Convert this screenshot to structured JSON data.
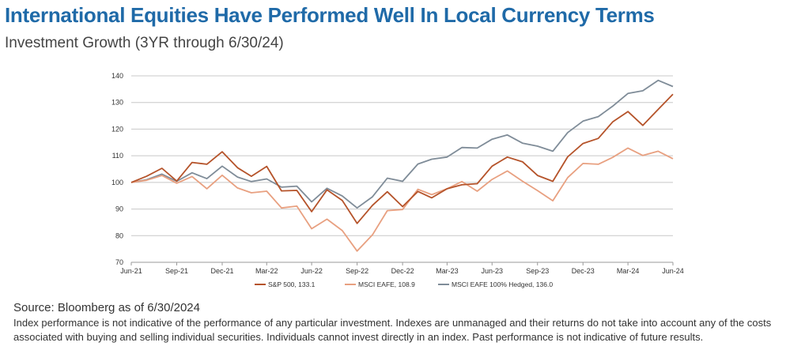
{
  "header": {
    "title": "International Equities Have Performed Well In Local Currency Terms",
    "subtitle": "Investment Growth (3YR through 6/30/24)"
  },
  "footer": {
    "source": "Source: Bloomberg as of 6/30/2024",
    "disclaimer": "Index performance is not indicative of the performance of any particular investment. Indexes are unmanaged and their returns do not take into account any of the costs associated with buying and selling individual securities. Individuals cannot invest directly in an index. Past performance is not indicative of future results."
  },
  "chart_data": {
    "type": "line",
    "title": "",
    "xlabel": "",
    "ylabel": "",
    "ylim": [
      70,
      140
    ],
    "yticks": [
      70,
      80,
      90,
      100,
      110,
      120,
      130,
      140
    ],
    "xlim": [
      "2021-06-30",
      "2024-06-30"
    ],
    "xticks": [
      {
        "date": "2021-06-30",
        "label": "Jun-21"
      },
      {
        "date": "2021-09-30",
        "label": "Sep-21"
      },
      {
        "date": "2021-12-31",
        "label": "Dec-21"
      },
      {
        "date": "2022-03-31",
        "label": "Mar-22"
      },
      {
        "date": "2022-06-30",
        "label": "Jun-22"
      },
      {
        "date": "2022-09-30",
        "label": "Sep-22"
      },
      {
        "date": "2022-12-31",
        "label": "Dec-22"
      },
      {
        "date": "2023-03-31",
        "label": "Mar-23"
      },
      {
        "date": "2023-06-30",
        "label": "Jun-23"
      },
      {
        "date": "2023-09-30",
        "label": "Sep-23"
      },
      {
        "date": "2023-12-31",
        "label": "Dec-23"
      },
      {
        "date": "2024-03-31",
        "label": "Mar-24"
      },
      {
        "date": "2024-06-30",
        "label": "Jun-24"
      }
    ],
    "grid": "horizontal",
    "legend_position": "bottom",
    "x": [
      "2021-06-30",
      "2021-07-31",
      "2021-08-31",
      "2021-09-30",
      "2021-10-31",
      "2021-11-30",
      "2021-12-31",
      "2022-01-31",
      "2022-02-28",
      "2022-03-31",
      "2022-04-30",
      "2022-05-31",
      "2022-06-30",
      "2022-07-31",
      "2022-08-31",
      "2022-09-30",
      "2022-10-31",
      "2022-11-30",
      "2022-12-31",
      "2023-01-31",
      "2023-02-28",
      "2023-03-31",
      "2023-04-30",
      "2023-05-31",
      "2023-06-30",
      "2023-07-31",
      "2023-08-31",
      "2023-09-30",
      "2023-10-31",
      "2023-11-30",
      "2023-12-31",
      "2024-01-31",
      "2024-02-29",
      "2024-03-31",
      "2024-04-30",
      "2024-05-31",
      "2024-06-30"
    ],
    "series": [
      {
        "name": "S&P 500, 133.1",
        "color": "#b5532a",
        "values": [
          100,
          102.3,
          105.3,
          100.5,
          107.5,
          106.8,
          111.5,
          105.5,
          102.3,
          106.0,
          96.8,
          97.0,
          89.0,
          97.2,
          93.2,
          84.6,
          91.4,
          96.5,
          90.9,
          96.6,
          94.2,
          97.6,
          99.1,
          99.5,
          106.1,
          109.5,
          107.7,
          102.6,
          100.4,
          109.6,
          114.6,
          116.5,
          122.7,
          126.6,
          121.4,
          127.4,
          133.1
        ]
      },
      {
        "name": "MSCI EAFE, 108.9",
        "color": "#e8a080",
        "values": [
          100,
          100.8,
          102.6,
          99.7,
          102.2,
          97.6,
          102.7,
          97.9,
          96.1,
          96.7,
          90.4,
          91.1,
          82.6,
          86.2,
          81.9,
          74.2,
          80.3,
          89.4,
          89.8,
          97.4,
          95.4,
          97.6,
          100.3,
          96.7,
          101.1,
          104.3,
          100.4,
          96.9,
          93.1,
          101.8,
          107.1,
          106.8,
          109.4,
          112.9,
          110.1,
          111.7,
          108.9
        ]
      },
      {
        "name": "MSCI EAFE 100% Hedged, 136.0",
        "color": "#7f8c98",
        "values": [
          100,
          101.0,
          103.1,
          100.4,
          103.6,
          101.4,
          106.1,
          102.0,
          100.3,
          101.3,
          98.2,
          98.6,
          92.7,
          97.8,
          94.9,
          90.4,
          94.6,
          101.6,
          100.4,
          106.9,
          108.7,
          109.5,
          113.1,
          112.9,
          116.2,
          117.8,
          114.7,
          113.6,
          111.7,
          118.7,
          123.0,
          124.7,
          128.6,
          133.4,
          134.4,
          138.3,
          136.0
        ]
      }
    ]
  }
}
